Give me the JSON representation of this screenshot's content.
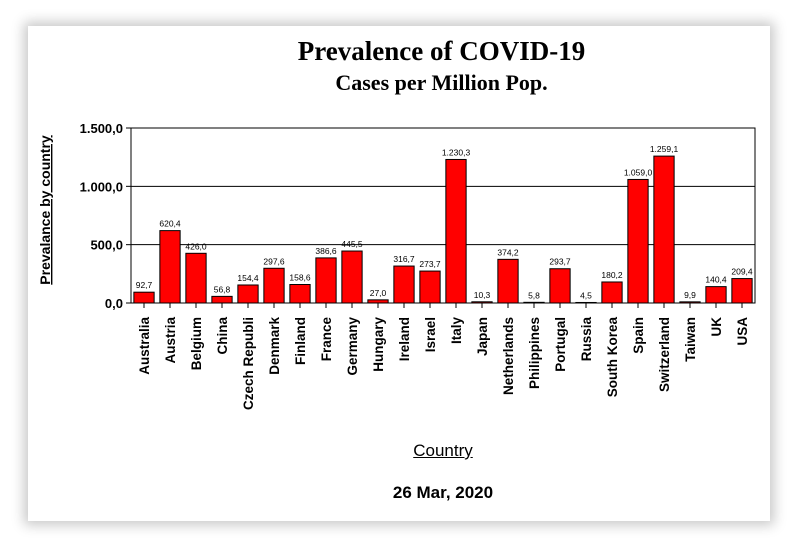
{
  "chart_data": {
    "type": "bar",
    "title": "Prevalence of COVID-19",
    "subtitle": "Cases per Million Pop.",
    "xlabel": "Country",
    "ylabel": "Prevalance by country",
    "caption": "26 Mar, 2020",
    "ylim": [
      0,
      1500
    ],
    "yticks": [
      0,
      500,
      1000,
      1500
    ],
    "ytick_labels": [
      "0,0",
      "500,0",
      "1.000,0",
      "1.500,0"
    ],
    "grid": true,
    "bar_color": "#ff0000",
    "categories": [
      "Australia",
      "Austria",
      "Belgium",
      "China",
      "Czech Republi",
      "Denmark",
      "Finland",
      "France",
      "Germany",
      "Hungary",
      "Ireland",
      "Israel",
      "Italy",
      "Japan",
      "Netherlands",
      "Philippines",
      "Portugal",
      "Russia",
      "South Korea",
      "Spain",
      "Switzerland",
      "Taiwan",
      "UK",
      "USA"
    ],
    "values": [
      92.7,
      620.4,
      426.0,
      56.8,
      154.4,
      297.6,
      158.6,
      386.6,
      445.5,
      27.0,
      316.7,
      273.7,
      1230.3,
      10.3,
      374.2,
      5.8,
      293.7,
      4.5,
      180.2,
      1059.0,
      1259.1,
      9.9,
      140.4,
      209.4
    ],
    "value_labels": [
      "92,7",
      "620,4",
      "426,0",
      "56,8",
      "154,4",
      "297,6",
      "158,6",
      "386,6",
      "445,5",
      "27,0",
      "316,7",
      "273,7",
      "1.230,3",
      "10,3",
      "374,2",
      "5,8",
      "293,7",
      "4,5",
      "180,2",
      "1.059,0",
      "1.259,1",
      "9,9",
      "140,4",
      "209,4"
    ]
  }
}
